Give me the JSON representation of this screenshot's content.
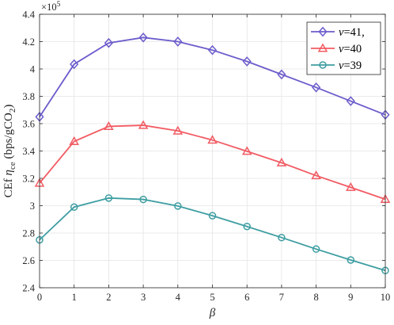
{
  "chart_data": {
    "type": "line",
    "x": [
      0,
      1,
      2,
      3,
      4,
      5,
      6,
      7,
      8,
      9,
      10
    ],
    "series": [
      {
        "name": "ν=41,",
        "color": "#6b5ccc",
        "marker": "diamond",
        "values": [
          365000,
          403500,
          419000,
          423000,
          420000,
          413800,
          405500,
          396000,
          386500,
          376500,
          366500
        ]
      },
      {
        "name": "ν=40",
        "color": "#f25b63",
        "marker": "triangle",
        "values": [
          316500,
          347000,
          358000,
          358800,
          354700,
          348000,
          339800,
          331400,
          322000,
          313400,
          304700
        ]
      },
      {
        "name": "ν=39",
        "color": "#3e9ea2",
        "marker": "circle",
        "values": [
          275000,
          299000,
          305600,
          304600,
          299800,
          292700,
          284800,
          276700,
          268300,
          260300,
          252600
        ]
      }
    ],
    "xlabel": "β",
    "ylabel": {
      "prefix": "CEf ",
      "eta": "η",
      "eta_sub": "ce",
      "unit_open": " (bps/gCO",
      "unit_sub": "2",
      "unit_close": ")"
    },
    "xlim": [
      0,
      10
    ],
    "ylim": [
      240000,
      440000
    ],
    "xticks": [
      0,
      1,
      2,
      3,
      4,
      5,
      6,
      7,
      8,
      9,
      10
    ],
    "yticks": [
      2.4,
      2.6,
      2.8,
      3,
      3.2,
      3.4,
      3.6,
      3.8,
      4,
      4.2,
      4.4
    ],
    "y_exponent": {
      "base": "10",
      "power": "5",
      "times": "×"
    },
    "grid": true,
    "legend_position": "top-right"
  }
}
